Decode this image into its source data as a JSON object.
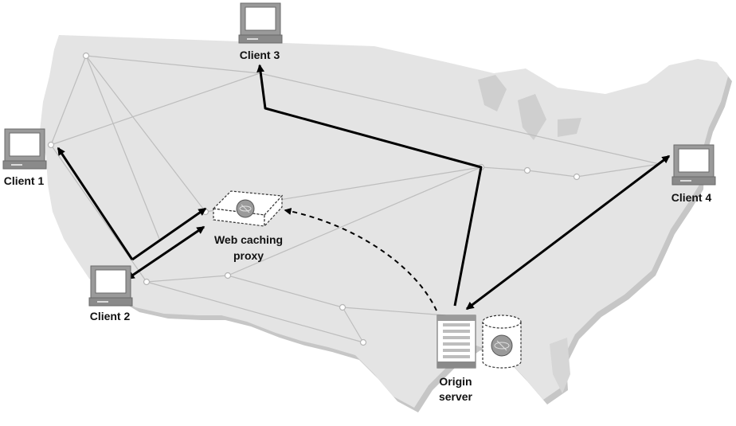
{
  "labels": {
    "client1": "Client 1",
    "client2": "Client 2",
    "client3": "Client 3",
    "client4": "Client 4",
    "proxy_line1": "Web caching",
    "proxy_line2": "proxy",
    "origin_line1": "Origin",
    "origin_line2": "server"
  },
  "colors": {
    "map_fill": "#e4e4e4",
    "map_shadow": "#c4c4c4",
    "network_line": "#bdbdbd",
    "node_fill": "#ffffff",
    "arrow": "#000000",
    "device_gray": "#9a9a9a",
    "device_dark": "#6a6a6a"
  },
  "icons": {
    "client": "desktop-computer-icon",
    "proxy": "cache-appliance-icon",
    "origin": "server-tower-icon",
    "storage": "database-cylinder-icon"
  }
}
